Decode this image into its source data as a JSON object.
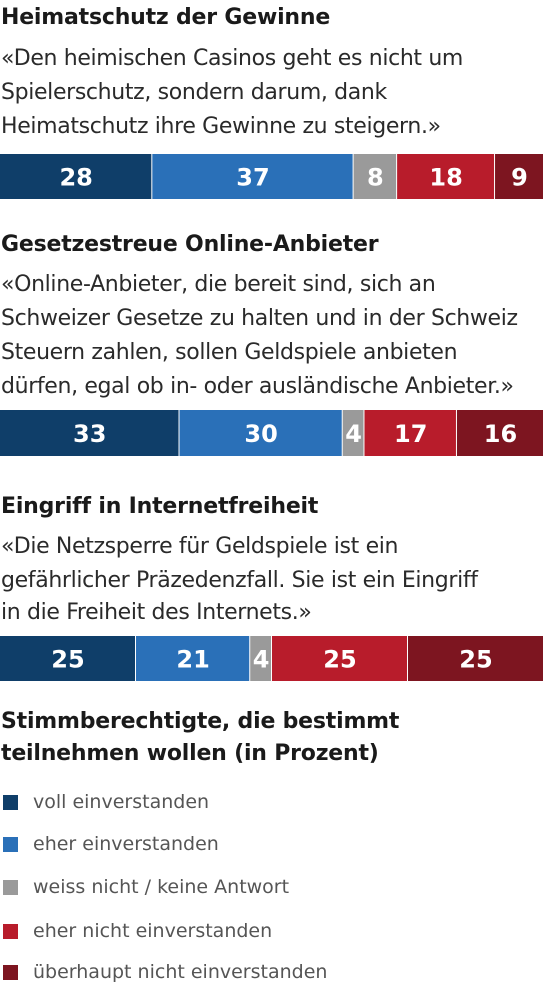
{
  "colors": {
    "voll_einverstanden": "#0f3e69",
    "eher_einverstanden": "#2a70b8",
    "weiss_nicht": "#9a9a9a",
    "eher_nicht": "#b81c2b",
    "ueberhaupt_nicht": "#7d1520"
  },
  "questions": [
    {
      "title": "Heimatschutz der Gewinne",
      "quote_lines": [
        "«Den heimischen Casinos geht es nicht um",
        "Spielerschutz, sondern darum, dank",
        "Heimatschutz ihre Gewinne zu steigern.»"
      ]
    },
    {
      "title": "Gesetzestreue Online-Anbieter",
      "quote_lines": [
        "«Online-Anbieter, die bereit sind, sich an",
        "Schweizer Gesetze zu halten und in der Schweiz",
        "Steuern zahlen, sollen Geldspiele anbieten",
        "dürfen, egal ob in- oder ausländische Anbieter.»"
      ]
    },
    {
      "title": "Eingriff in Internetfreiheit",
      "quote_lines": [
        "«Die Netzsperre für Geldspiele ist ein",
        "gefährlicher Präzedenzfall. Sie ist ein Eingriff",
        "in die Freiheit des Internets.»"
      ]
    }
  ],
  "chart_data": {
    "type": "bar",
    "orientation": "horizontal",
    "stacked": true,
    "unit": "Prozent",
    "categories": [
      "Heimatschutz der Gewinne",
      "Gesetzestreue Online-Anbieter",
      "Eingriff in Internetfreiheit"
    ],
    "series": [
      {
        "name": "voll einverstanden",
        "color": "#0f3e69",
        "values": [
          28,
          33,
          25
        ]
      },
      {
        "name": "eher einverstanden",
        "color": "#2a70b8",
        "values": [
          37,
          30,
          21
        ]
      },
      {
        "name": "weiss nicht / keine Antwort",
        "color": "#9a9a9a",
        "values": [
          8,
          4,
          4
        ]
      },
      {
        "name": "eher nicht einverstanden",
        "color": "#b81c2b",
        "values": [
          18,
          17,
          25
        ]
      },
      {
        "name": "überhaupt nicht einverstanden",
        "color": "#7d1520",
        "values": [
          9,
          16,
          25
        ]
      }
    ],
    "data_labels": true,
    "grid": false,
    "legend_position": "bottom"
  },
  "legend": {
    "title": "Stimmberechtigte, die bestimmt teilnehmen wollen (in Prozent)",
    "items": [
      {
        "label": "voll einverstanden",
        "color": "#0f3e69"
      },
      {
        "label": "eher einverstanden",
        "color": "#2a70b8"
      },
      {
        "label": "weiss nicht / keine Antwort",
        "color": "#9a9a9a"
      },
      {
        "label": "eher nicht einverstanden",
        "color": "#b81c2b"
      },
      {
        "label": "überhaupt nicht einverstanden",
        "color": "#7d1520"
      }
    ]
  }
}
